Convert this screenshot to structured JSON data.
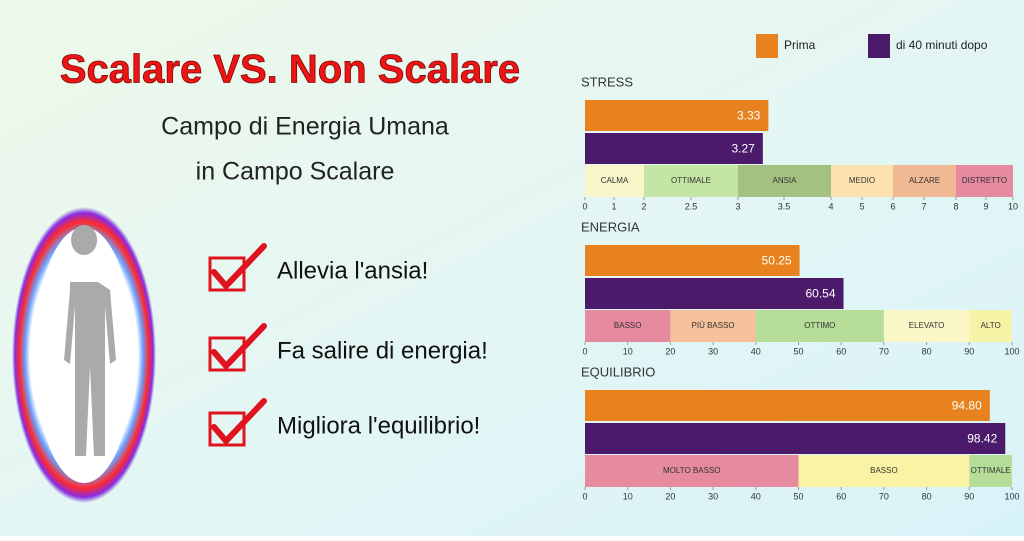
{
  "header": {
    "title": "Scalare VS. Non Scalare",
    "subtitle_lines": [
      "Campo di Energia Umana",
      "in Campo Scalare"
    ]
  },
  "benefits": [
    "Allevia l'ansia!",
    "Fa salire di energia!",
    "Migliora l'equilibrio!"
  ],
  "chart_data": [
    {
      "type": "bar",
      "title": "STRESS",
      "xlim": [
        0,
        10
      ],
      "xticks": [
        0,
        1,
        2,
        2.5,
        3,
        3.5,
        4,
        5,
        6,
        7,
        8,
        9,
        10
      ],
      "series": [
        {
          "name": "Prima",
          "color": "#e8821e",
          "values": [
            3.33
          ],
          "value_labels": [
            "3.33"
          ]
        },
        {
          "name": "di 40 minuti dopo",
          "color": "#4b1a6b",
          "values": [
            3.27
          ],
          "value_labels": [
            "3.27"
          ]
        }
      ],
      "zones": [
        {
          "label": "CALMA",
          "range": [
            0,
            2
          ],
          "color": "#f8f6c8"
        },
        {
          "label": "OTTIMALE",
          "range": [
            2,
            3
          ],
          "color": "#c4e6a4"
        },
        {
          "label": "ANSIA",
          "range": [
            3,
            4
          ],
          "color": "#a3c282"
        },
        {
          "label": "MEDIO",
          "range": [
            4,
            6
          ],
          "color": "#fbe2b0"
        },
        {
          "label": "ALZARE",
          "range": [
            6,
            8
          ],
          "color": "#f1b894"
        },
        {
          "label": "DISTRETTO",
          "range": [
            8,
            10
          ],
          "color": "#e68aa0"
        }
      ]
    },
    {
      "type": "bar",
      "title": "ENERGIA",
      "xlim": [
        0,
        100
      ],
      "xticks": [
        0,
        10,
        20,
        30,
        40,
        50,
        60,
        70,
        80,
        90,
        100
      ],
      "series": [
        {
          "color": "#e8821e",
          "values": [
            50.25
          ],
          "value_labels": [
            "50.25"
          ]
        },
        {
          "color": "#4b1a6b",
          "values": [
            60.54
          ],
          "value_labels": [
            "60.54"
          ]
        }
      ],
      "zones": [
        {
          "label": "BASSO",
          "range": [
            0,
            20
          ],
          "color": "#e68aa0"
        },
        {
          "label": "PIÙ BASSO",
          "range": [
            20,
            40
          ],
          "color": "#f6c09a"
        },
        {
          "label": "OTTIMO",
          "range": [
            40,
            70
          ],
          "color": "#b6dd98"
        },
        {
          "label": "ELEVATO",
          "range": [
            70,
            90
          ],
          "color": "#faf6c8"
        },
        {
          "label": "ALTO",
          "range": [
            90,
            100
          ],
          "color": "#f7f3a6"
        }
      ]
    },
    {
      "type": "bar",
      "title": "EQUILIBRIO",
      "xlim": [
        0,
        100
      ],
      "xticks": [
        0,
        10,
        20,
        30,
        40,
        50,
        60,
        70,
        80,
        90,
        100
      ],
      "series": [
        {
          "color": "#e8821e",
          "values": [
            94.8
          ],
          "value_labels": [
            "94.80"
          ]
        },
        {
          "color": "#4b1a6b",
          "values": [
            98.42
          ],
          "value_labels": [
            "98.42"
          ]
        }
      ],
      "zones": [
        {
          "label": "MOLTO BASSO",
          "range": [
            0,
            50
          ],
          "color": "#e68aa0"
        },
        {
          "label": "BASSO",
          "range": [
            50,
            90
          ],
          "color": "#faf3a4"
        },
        {
          "label": "OTTIMALE",
          "range": [
            90,
            100
          ],
          "color": "#b6dd98"
        }
      ]
    }
  ]
}
